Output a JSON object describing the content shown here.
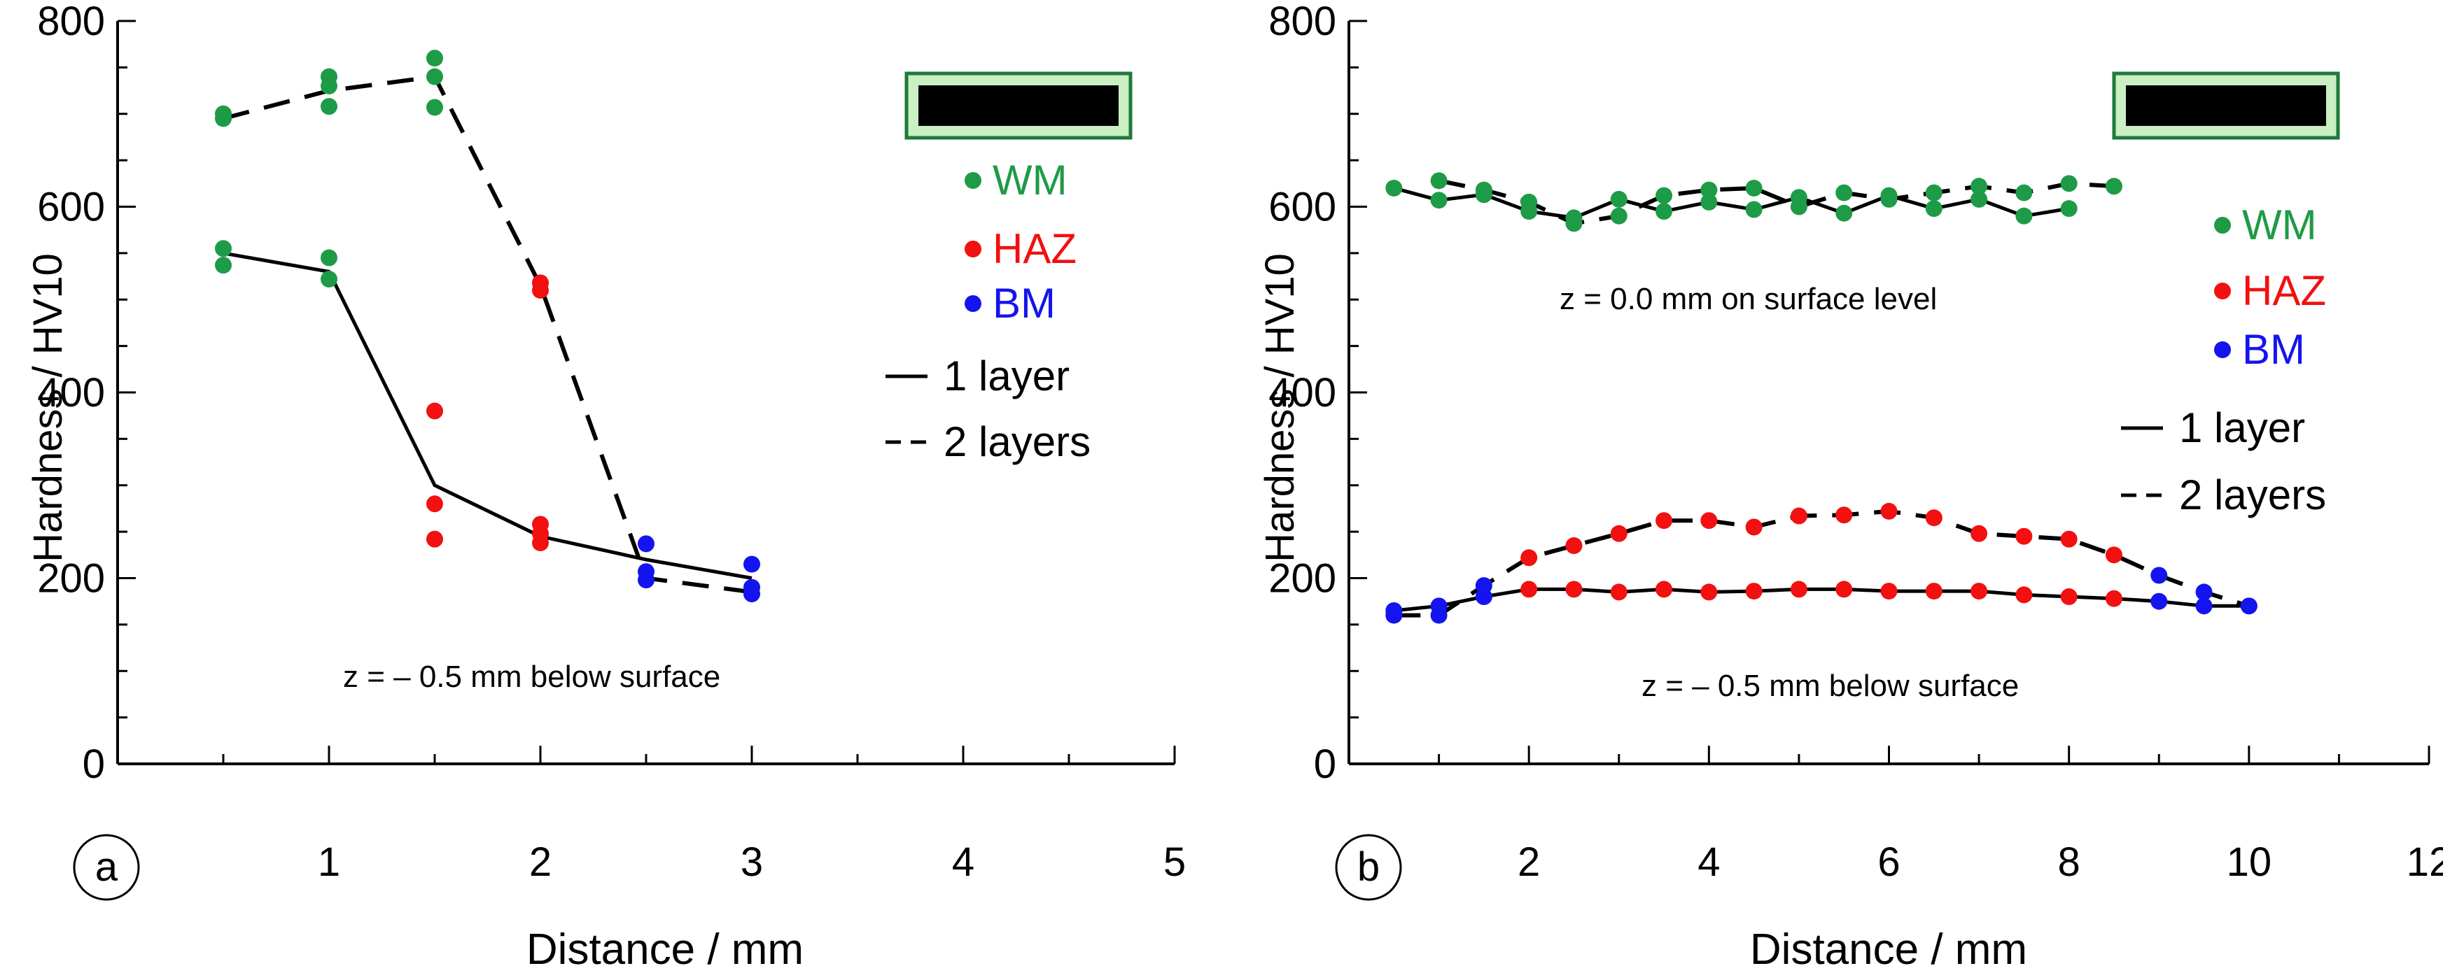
{
  "colors": {
    "wm": "#1e9b46",
    "haz": "#f21010",
    "bm": "#1414ee",
    "axis": "#000000",
    "scale_bar_fill": "#000000",
    "scale_bar_border": "#1e7a3a",
    "scale_bar_bg": "#c9efc2"
  },
  "chart_data": [
    {
      "panel_label": "a",
      "type": "line+scatter",
      "xlabel": "Distance / mm",
      "ylabel": "Hardness / HV10",
      "xlim": [
        0,
        5
      ],
      "ylim": [
        0,
        800
      ],
      "xticks": [
        0,
        1,
        2,
        3,
        4,
        5
      ],
      "yticks": [
        0,
        200,
        400,
        600,
        800
      ],
      "x_minor_step": 0.5,
      "y_minor_step": 50,
      "annotation": "z = – 0.5 mm below surface",
      "legend": {
        "location": "top-right",
        "markers": [
          {
            "label": "WM",
            "color_key": "wm"
          },
          {
            "label": "HAZ",
            "color_key": "haz"
          },
          {
            "label": "BM",
            "color_key": "bm"
          }
        ],
        "lines": [
          {
            "label": "1 layer",
            "dash": "solid"
          },
          {
            "label": "2 layers",
            "dash": "dashed"
          }
        ]
      },
      "lines": [
        {
          "name": "1 layer",
          "dash": "solid",
          "x": [
            0.5,
            1.0,
            1.5,
            2.0,
            2.5,
            3.0
          ],
          "y": [
            550,
            530,
            300,
            245,
            220,
            200
          ]
        },
        {
          "name": "2 layers",
          "dash": "dashed",
          "x": [
            0.5,
            1.0,
            1.5,
            2.0,
            2.5,
            3.0
          ],
          "y": [
            695,
            725,
            740,
            515,
            200,
            185
          ]
        }
      ],
      "points": [
        {
          "x": 0.5,
          "y": 700,
          "zone": "wm"
        },
        {
          "x": 0.5,
          "y": 695,
          "zone": "wm"
        },
        {
          "x": 0.5,
          "y": 555,
          "zone": "wm"
        },
        {
          "x": 0.5,
          "y": 537,
          "zone": "wm"
        },
        {
          "x": 1.0,
          "y": 740,
          "zone": "wm"
        },
        {
          "x": 1.0,
          "y": 730,
          "zone": "wm"
        },
        {
          "x": 1.0,
          "y": 708,
          "zone": "wm"
        },
        {
          "x": 1.0,
          "y": 545,
          "zone": "wm"
        },
        {
          "x": 1.0,
          "y": 522,
          "zone": "wm"
        },
        {
          "x": 1.5,
          "y": 760,
          "zone": "wm"
        },
        {
          "x": 1.5,
          "y": 740,
          "zone": "wm"
        },
        {
          "x": 1.5,
          "y": 707,
          "zone": "wm"
        },
        {
          "x": 1.5,
          "y": 380,
          "zone": "haz"
        },
        {
          "x": 1.5,
          "y": 280,
          "zone": "haz"
        },
        {
          "x": 1.5,
          "y": 242,
          "zone": "haz"
        },
        {
          "x": 2.0,
          "y": 518,
          "zone": "haz"
        },
        {
          "x": 2.0,
          "y": 510,
          "zone": "haz"
        },
        {
          "x": 2.0,
          "y": 258,
          "zone": "haz"
        },
        {
          "x": 2.0,
          "y": 248,
          "zone": "haz"
        },
        {
          "x": 2.0,
          "y": 238,
          "zone": "haz"
        },
        {
          "x": 2.5,
          "y": 237,
          "zone": "bm"
        },
        {
          "x": 2.5,
          "y": 207,
          "zone": "bm"
        },
        {
          "x": 2.5,
          "y": 198,
          "zone": "bm"
        },
        {
          "x": 3.0,
          "y": 215,
          "zone": "bm"
        },
        {
          "x": 3.0,
          "y": 190,
          "zone": "bm"
        },
        {
          "x": 3.0,
          "y": 183,
          "zone": "bm"
        }
      ]
    },
    {
      "panel_label": "b",
      "type": "line+scatter",
      "xlabel": "Distance / mm",
      "ylabel": "Hardness / HV10",
      "xlim": [
        0,
        12
      ],
      "ylim": [
        0,
        800
      ],
      "xticks": [
        0,
        2,
        4,
        6,
        8,
        10,
        12
      ],
      "yticks": [
        0,
        200,
        400,
        600,
        800
      ],
      "x_minor_step": 1,
      "y_minor_step": 50,
      "annotations": [
        "z = 0.0 mm on surface level",
        "z = – 0.5 mm below surface"
      ],
      "legend": {
        "location": "right",
        "markers": [
          {
            "label": "WM",
            "color_key": "wm"
          },
          {
            "label": "HAZ",
            "color_key": "haz"
          },
          {
            "label": "BM",
            "color_key": "bm"
          }
        ],
        "lines": [
          {
            "label": "1 layer",
            "dash": "solid"
          },
          {
            "label": "2 layers",
            "dash": "dashed"
          }
        ]
      },
      "series": [
        {
          "name": "surface 1 layer",
          "dash": "solid",
          "zones": [
            "wm"
          ],
          "x": [
            0.5,
            1.0,
            1.5,
            2.0,
            2.5,
            3.0,
            3.5,
            4.0,
            4.5,
            5.0,
            5.5,
            6.0,
            6.5,
            7.0,
            7.5,
            8.0
          ],
          "y": [
            620,
            607,
            613,
            595,
            588,
            608,
            595,
            605,
            597,
            610,
            593,
            612,
            598,
            608,
            590,
            598
          ]
        },
        {
          "name": "surface 2 layers",
          "dash": "dashed",
          "zones": [
            "wm"
          ],
          "x": [
            1.0,
            1.5,
            2.0,
            2.5,
            3.0,
            3.5,
            4.0,
            4.5,
            5.0,
            5.5,
            6.0,
            6.5,
            7.0,
            7.5,
            8.0,
            8.5
          ],
          "y": [
            628,
            618,
            605,
            582,
            590,
            612,
            618,
            620,
            600,
            615,
            608,
            615,
            622,
            615,
            625,
            622
          ]
        },
        {
          "name": "below 1 layer",
          "dash": "solid",
          "x": [
            0.5,
            1.0,
            1.5,
            2.0,
            2.5,
            3.0,
            3.5,
            4.0,
            4.5,
            5.0,
            5.5,
            6.0,
            6.5,
            7.0,
            7.5,
            8.0,
            8.5,
            9.0,
            9.5,
            10.0
          ],
          "y": [
            165,
            170,
            180,
            188,
            188,
            185,
            188,
            185,
            186,
            188,
            188,
            186,
            186,
            186,
            182,
            180,
            178,
            175,
            170,
            170
          ],
          "zones": [
            "bm",
            "bm",
            "bm",
            "haz",
            "haz",
            "haz",
            "haz",
            "haz",
            "haz",
            "haz",
            "haz",
            "haz",
            "haz",
            "haz",
            "haz",
            "haz",
            "haz",
            "bm",
            "bm",
            "bm"
          ]
        },
        {
          "name": "below 2 layers",
          "dash": "dashed",
          "x": [
            0.5,
            1.0,
            1.5,
            2.0,
            2.5,
            3.0,
            3.5,
            4.0,
            4.5,
            5.0,
            5.5,
            6.0,
            6.5,
            7.0,
            7.5,
            8.0,
            8.5,
            9.0,
            9.5,
            10.0
          ],
          "y": [
            160,
            160,
            192,
            222,
            235,
            248,
            262,
            262,
            255,
            267,
            268,
            272,
            265,
            248,
            245,
            242,
            225,
            203,
            185,
            170
          ],
          "zones": [
            "bm",
            "bm",
            "bm",
            "haz",
            "haz",
            "haz",
            "haz",
            "haz",
            "haz",
            "haz",
            "haz",
            "haz",
            "haz",
            "haz",
            "haz",
            "haz",
            "haz",
            "bm",
            "bm",
            "bm"
          ]
        }
      ]
    }
  ]
}
